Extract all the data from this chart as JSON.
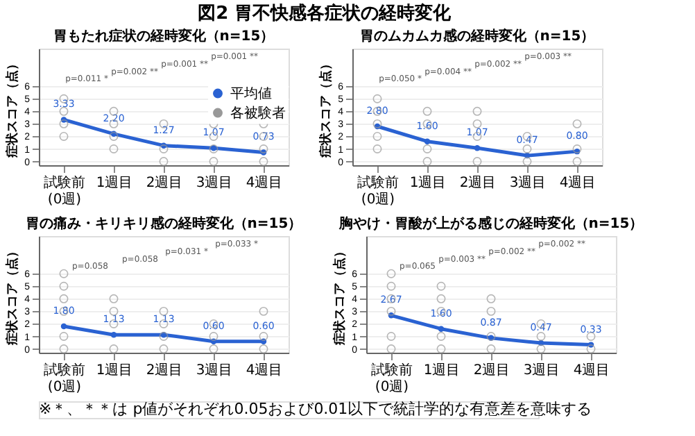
{
  "chart_data": [
    {
      "type": "line",
      "title": "図2 胃不快感各症状の経時変化",
      "subtitle": "胃もたれ症状の経時変化（n=15）",
      "categories": [
        "試験前\n(0週)",
        "1週目",
        "2週目",
        "3週目",
        "4週目"
      ],
      "ylabel": "症状スコア（点）",
      "ylim": [
        -0.3,
        9
      ],
      "yticks": [
        0,
        1,
        2,
        3,
        4,
        5,
        6
      ],
      "grid": "y",
      "legend": "top right",
      "series": [
        {
          "name": "平均値",
          "color": "#2a62d2",
          "marker": "circle",
          "values": [
            3.33,
            2.2,
            1.27,
            1.07,
            0.73
          ],
          "value_labels": [
            "3.33",
            "2.20",
            "1.27",
            "1.07",
            "0.73"
          ]
        },
        {
          "name": "各被験者",
          "type": "scatter",
          "color": "#999999",
          "x": [
            "試験前\n(0週)",
            "試験前\n(0週)",
            "試験前\n(0週)",
            "試験前\n(0週)",
            "1週目",
            "1週目",
            "1週目",
            "1週目",
            "2週目",
            "2週目",
            "2週目",
            "3週目",
            "3週目",
            "3週目",
            "3週目",
            "4週目",
            "4週目",
            "4週目",
            "4週目"
          ],
          "values": [
            5,
            4,
            3,
            2,
            4,
            3,
            2,
            1,
            3,
            1,
            0,
            3,
            2,
            1,
            0,
            3,
            2,
            1,
            0
          ]
        }
      ],
      "annotations": [
        "p=0.011 *",
        "p=0.002 **",
        "p=0.001 **",
        "p=0.001 **"
      ]
    },
    {
      "type": "line",
      "title": "胃のムカムカ感の経時変化（n=15）",
      "categories": [
        "試験前\n(0週)",
        "1週目",
        "2週目",
        "3週目",
        "4週目"
      ],
      "ylabel": "症状スコア（点）",
      "ylim": [
        -0.3,
        9
      ],
      "yticks": [
        0,
        1,
        2,
        3,
        4,
        5,
        6
      ],
      "grid": "y",
      "series": [
        {
          "name": "平均値",
          "color": "#2a62d2",
          "marker": "circle",
          "values": [
            2.8,
            1.6,
            1.07,
            0.47,
            0.8
          ],
          "value_labels": [
            "2.80",
            "1.60",
            "1.07",
            "0.47",
            "0.80"
          ]
        },
        {
          "name": "各被験者",
          "type": "scatter",
          "color": "#999999",
          "x": [
            "試験前\n(0週)",
            "試験前\n(0週)",
            "試験前\n(0週)",
            "試験前\n(0週)",
            "試験前\n(0週)",
            "1週目",
            "1週目",
            "1週目",
            "1週目",
            "2週目",
            "2週目",
            "2週目",
            "2週目",
            "3週目",
            "3週目",
            "3週目",
            "4週目",
            "4週目",
            "4週目"
          ],
          "values": [
            5,
            4,
            3,
            2,
            1,
            4,
            3,
            1,
            0,
            4,
            3,
            2,
            0,
            2,
            1,
            0,
            3,
            1,
            0
          ]
        }
      ],
      "annotations": [
        "p=0.050 *",
        "p=0.004 **",
        "p=0.002 **",
        "p=0.003 **"
      ]
    },
    {
      "type": "line",
      "title": "胃の痛み・キリキリ感の経時変化（n=15）",
      "categories": [
        "試験前\n(0週)",
        "1週目",
        "2週目",
        "3週目",
        "4週目"
      ],
      "ylabel": "症状スコア（点）",
      "ylim": [
        -0.3,
        9
      ],
      "yticks": [
        0,
        1,
        2,
        3,
        4,
        5,
        6
      ],
      "grid": "y",
      "series": [
        {
          "name": "平均値",
          "color": "#2a62d2",
          "marker": "circle",
          "values": [
            1.8,
            1.13,
            1.13,
            0.6,
            0.6
          ],
          "value_labels": [
            "1.80",
            "1.13",
            "1.13",
            "0.60",
            "0.60"
          ]
        },
        {
          "name": "各被験者",
          "type": "scatter",
          "color": "#999999",
          "x": [
            "試験前\n(0週)",
            "試験前\n(0週)",
            "試験前\n(0週)",
            "試験前\n(0週)",
            "試験前\n(0週)",
            "試験前\n(0週)",
            "1週目",
            "1週目",
            "1週目",
            "1週目",
            "2週目",
            "2週目",
            "2週目",
            "2週目",
            "3週目",
            "3週目",
            "3週目",
            "4週目",
            "4週目",
            "4週目"
          ],
          "values": [
            6,
            5,
            4,
            3,
            1,
            0,
            4,
            3,
            2,
            0,
            3,
            2,
            1,
            0,
            2,
            1,
            0,
            3,
            1,
            0
          ]
        }
      ],
      "annotations": [
        "p=0.058",
        "p=0.058",
        "p=0.031 *",
        "p=0.033 *"
      ]
    },
    {
      "type": "line",
      "title": "胸やけ・胃酸が上がる感じの経時変化（n=15）",
      "categories": [
        "試験前\n(0週)",
        "1週目",
        "2週目",
        "3週目",
        "4週目"
      ],
      "ylabel": "症状スコア（点）",
      "ylim": [
        -0.3,
        9
      ],
      "yticks": [
        0,
        1,
        2,
        3,
        4,
        5,
        6
      ],
      "grid": "y",
      "series": [
        {
          "name": "平均値",
          "color": "#2a62d2",
          "marker": "circle",
          "values": [
            2.67,
            1.6,
            0.87,
            0.47,
            0.33
          ],
          "value_labels": [
            "2.67",
            "1.60",
            "0.87",
            "0.47",
            "0.33"
          ]
        },
        {
          "name": "各被験者",
          "type": "scatter",
          "color": "#999999",
          "x": [
            "試験前\n(0週)",
            "試験前\n(0週)",
            "試験前\n(0週)",
            "試験前\n(0週)",
            "試験前\n(0週)",
            "試験前\n(0週)",
            "1週目",
            "1週目",
            "1週目",
            "1週目",
            "1週目",
            "2週目",
            "2週目",
            "2週目",
            "2週目",
            "3週目",
            "3週目",
            "3週目",
            "4週目",
            "4週目"
          ],
          "values": [
            6,
            5,
            4,
            3,
            1,
            0,
            5,
            4,
            3,
            1,
            0,
            4,
            3,
            1,
            0,
            2,
            1,
            0,
            1,
            0
          ]
        }
      ],
      "annotations": [
        "p=0.065",
        "p=0.003 **",
        "p=0.002 **",
        "p=0.002 **",
        "※＊、＊＊は p値がそれぞれ0.05および0.01以下で統計学的な有意差を意味する"
      ]
    }
  ]
}
